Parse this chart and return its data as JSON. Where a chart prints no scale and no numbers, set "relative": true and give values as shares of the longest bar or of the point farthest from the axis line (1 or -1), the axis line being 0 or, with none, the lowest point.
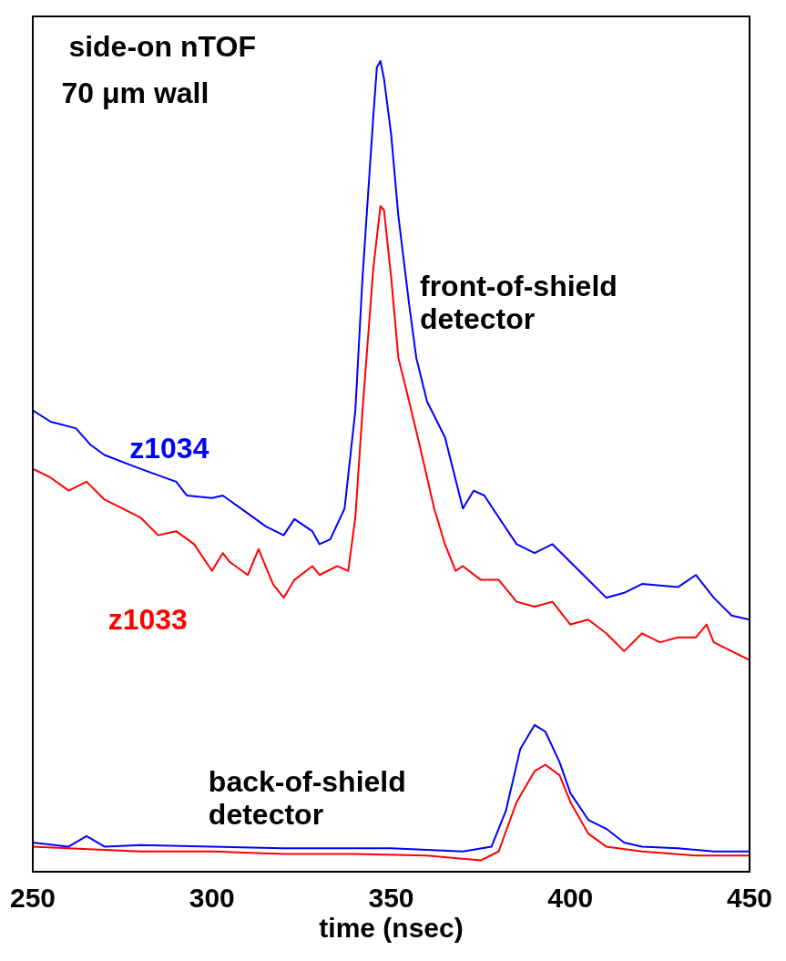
{
  "chart_data": {
    "type": "line",
    "relative": true,
    "xlabel": "time (nsec)",
    "xlim": [
      250,
      450
    ],
    "xticks": [
      250,
      300,
      350,
      400,
      450
    ],
    "marker": "none",
    "legend": false,
    "grid": false,
    "annotations": [
      "side-on nTOF",
      "70 μm wall",
      "front-of-shield detector",
      "back-of-shield detector"
    ],
    "series": [
      {
        "name": "z1034",
        "color": "#0000ff",
        "x": [
          250,
          255,
          262,
          266,
          270,
          280,
          290,
          293,
          300,
          303,
          310,
          315,
          320,
          323,
          328,
          330,
          333,
          337,
          340,
          342,
          345,
          346,
          347,
          348,
          350,
          352,
          355,
          357,
          360,
          365,
          370,
          373,
          376,
          380,
          385,
          390,
          395,
          400,
          405,
          410,
          415,
          420,
          430,
          435,
          440,
          445,
          450
        ],
        "values": [
          0.569,
          0.555,
          0.547,
          0.527,
          0.514,
          0.497,
          0.481,
          0.464,
          0.461,
          0.464,
          0.442,
          0.426,
          0.415,
          0.435,
          0.42,
          0.404,
          0.41,
          0.448,
          0.569,
          0.733,
          0.931,
          0.992,
          1.0,
          0.978,
          0.909,
          0.809,
          0.7,
          0.634,
          0.58,
          0.536,
          0.448,
          0.47,
          0.464,
          0.437,
          0.404,
          0.393,
          0.404,
          0.382,
          0.36,
          0.338,
          0.344,
          0.355,
          0.351,
          0.366,
          0.338,
          0.316,
          0.311
        ]
      },
      {
        "name": "z1033",
        "color": "#ff0000",
        "x": [
          250,
          255,
          260,
          265,
          270,
          280,
          285,
          290,
          295,
          300,
          303,
          305,
          310,
          313,
          317,
          320,
          323,
          328,
          330,
          335,
          338,
          340,
          342,
          345,
          347,
          348,
          350,
          352,
          355,
          358,
          362,
          365,
          368,
          370,
          375,
          380,
          385,
          390,
          395,
          400,
          405,
          410,
          415,
          420,
          425,
          430,
          435,
          438,
          440,
          445,
          450
        ],
        "values": [
          0.497,
          0.486,
          0.47,
          0.481,
          0.459,
          0.437,
          0.415,
          0.42,
          0.404,
          0.371,
          0.393,
          0.382,
          0.366,
          0.398,
          0.355,
          0.338,
          0.36,
          0.377,
          0.366,
          0.377,
          0.371,
          0.437,
          0.569,
          0.744,
          0.821,
          0.816,
          0.733,
          0.634,
          0.58,
          0.525,
          0.448,
          0.404,
          0.371,
          0.377,
          0.36,
          0.36,
          0.333,
          0.327,
          0.333,
          0.305,
          0.311,
          0.294,
          0.272,
          0.294,
          0.283,
          0.289,
          0.289,
          0.305,
          0.283,
          0.272,
          0.261
        ]
      },
      {
        "color": "#0000ff",
        "x": [
          250,
          260,
          265,
          270,
          280,
          300,
          320,
          340,
          350,
          370,
          378,
          382,
          386,
          390,
          393,
          397,
          400,
          405,
          410,
          415,
          420,
          430,
          440,
          450
        ],
        "values": [
          0.036,
          0.031,
          0.044,
          0.031,
          0.033,
          0.031,
          0.029,
          0.029,
          0.029,
          0.025,
          0.031,
          0.075,
          0.151,
          0.181,
          0.173,
          0.135,
          0.097,
          0.064,
          0.053,
          0.036,
          0.031,
          0.029,
          0.025,
          0.025
        ]
      },
      {
        "color": "#ff0000",
        "x": [
          250,
          260,
          280,
          300,
          320,
          340,
          360,
          375,
          380,
          385,
          390,
          393,
          397,
          400,
          405,
          410,
          420,
          435,
          450
        ],
        "values": [
          0.031,
          0.029,
          0.025,
          0.025,
          0.022,
          0.022,
          0.02,
          0.014,
          0.025,
          0.086,
          0.124,
          0.132,
          0.119,
          0.086,
          0.047,
          0.031,
          0.025,
          0.02,
          0.02
        ]
      }
    ]
  }
}
